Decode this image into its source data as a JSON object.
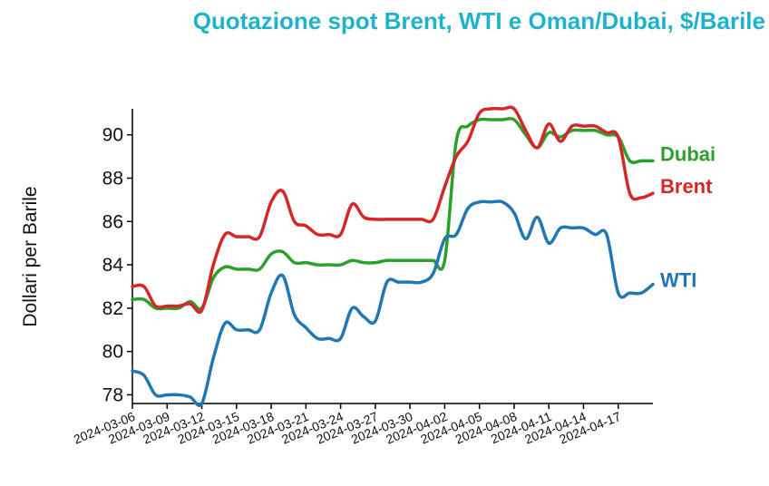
{
  "chart_data": {
    "type": "line",
    "title": "Quotazione spot Brent, WTI e Oman/Dubai, $/Barile",
    "ylabel": "Dollari per Barile",
    "xlabel": "",
    "x_ticks": [
      "2024-03-06",
      "2024-03-09",
      "2024-03-12",
      "2024-03-15",
      "2024-03-18",
      "2024-03-21",
      "2024-03-24",
      "2024-03-27",
      "2024-03-30",
      "2024-04-02",
      "2024-04-05",
      "2024-04-08",
      "2024-04-11",
      "2024-04-14",
      "2024-04-17"
    ],
    "y_ticks": [
      78,
      80,
      82,
      84,
      86,
      88,
      90
    ],
    "ylim": [
      77.6,
      91.2
    ],
    "xlim": [
      "2024-03-06",
      "2024-04-20"
    ],
    "grid": false,
    "legend": "inline labels at line ends (right)",
    "series": [
      {
        "name": "Dubai",
        "color": "#2ca02c",
        "points": [
          [
            "2024-03-06",
            82.4
          ],
          [
            "2024-03-07",
            82.4
          ],
          [
            "2024-03-08",
            82.0
          ],
          [
            "2024-03-09",
            82.0
          ],
          [
            "2024-03-10",
            82.0
          ],
          [
            "2024-03-11",
            82.3
          ],
          [
            "2024-03-12",
            82.0
          ],
          [
            "2024-03-13",
            83.4
          ],
          [
            "2024-03-14",
            83.9
          ],
          [
            "2024-03-15",
            83.8
          ],
          [
            "2024-03-16",
            83.8
          ],
          [
            "2024-03-17",
            83.8
          ],
          [
            "2024-03-18",
            84.5
          ],
          [
            "2024-03-19",
            84.6
          ],
          [
            "2024-03-20",
            84.1
          ],
          [
            "2024-03-21",
            84.1
          ],
          [
            "2024-03-22",
            84.0
          ],
          [
            "2024-03-23",
            84.0
          ],
          [
            "2024-03-24",
            84.0
          ],
          [
            "2024-03-25",
            84.2
          ],
          [
            "2024-03-26",
            84.1
          ],
          [
            "2024-03-27",
            84.1
          ],
          [
            "2024-03-28",
            84.2
          ],
          [
            "2024-03-29",
            84.2
          ],
          [
            "2024-03-30",
            84.2
          ],
          [
            "2024-03-31",
            84.2
          ],
          [
            "2024-04-01",
            84.2
          ],
          [
            "2024-04-02",
            84.2
          ],
          [
            "2024-04-03",
            89.7
          ],
          [
            "2024-04-04",
            90.4
          ],
          [
            "2024-04-05",
            90.7
          ],
          [
            "2024-04-06",
            90.7
          ],
          [
            "2024-04-07",
            90.7
          ],
          [
            "2024-04-08",
            90.7
          ],
          [
            "2024-04-09",
            90.0
          ],
          [
            "2024-04-10",
            89.4
          ],
          [
            "2024-04-11",
            90.1
          ],
          [
            "2024-04-12",
            89.9
          ],
          [
            "2024-04-13",
            90.2
          ],
          [
            "2024-04-14",
            90.2
          ],
          [
            "2024-04-15",
            90.2
          ],
          [
            "2024-04-16",
            90.0
          ],
          [
            "2024-04-17",
            89.9
          ],
          [
            "2024-04-18",
            88.8
          ],
          [
            "2024-04-19",
            88.8
          ],
          [
            "2024-04-20",
            88.8
          ]
        ]
      },
      {
        "name": "Brent",
        "color": "#d62728",
        "points": [
          [
            "2024-03-06",
            83.0
          ],
          [
            "2024-03-07",
            83.0
          ],
          [
            "2024-03-08",
            82.1
          ],
          [
            "2024-03-09",
            82.1
          ],
          [
            "2024-03-10",
            82.1
          ],
          [
            "2024-03-11",
            82.2
          ],
          [
            "2024-03-12",
            81.9
          ],
          [
            "2024-03-13",
            84.0
          ],
          [
            "2024-03-14",
            85.4
          ],
          [
            "2024-03-15",
            85.3
          ],
          [
            "2024-03-16",
            85.3
          ],
          [
            "2024-03-17",
            85.3
          ],
          [
            "2024-03-18",
            86.9
          ],
          [
            "2024-03-19",
            87.4
          ],
          [
            "2024-03-20",
            86.0
          ],
          [
            "2024-03-21",
            85.8
          ],
          [
            "2024-03-22",
            85.4
          ],
          [
            "2024-03-23",
            85.4
          ],
          [
            "2024-03-24",
            85.4
          ],
          [
            "2024-03-25",
            86.8
          ],
          [
            "2024-03-26",
            86.2
          ],
          [
            "2024-03-27",
            86.1
          ],
          [
            "2024-03-28",
            86.1
          ],
          [
            "2024-03-29",
            86.1
          ],
          [
            "2024-03-30",
            86.1
          ],
          [
            "2024-03-31",
            86.1
          ],
          [
            "2024-04-01",
            86.1
          ],
          [
            "2024-04-02",
            87.6
          ],
          [
            "2024-04-03",
            89.0
          ],
          [
            "2024-04-04",
            89.7
          ],
          [
            "2024-04-05",
            91.0
          ],
          [
            "2024-04-06",
            91.2
          ],
          [
            "2024-04-07",
            91.2
          ],
          [
            "2024-04-08",
            91.2
          ],
          [
            "2024-04-09",
            90.2
          ],
          [
            "2024-04-10",
            89.4
          ],
          [
            "2024-04-11",
            90.5
          ],
          [
            "2024-04-12",
            89.7
          ],
          [
            "2024-04-13",
            90.4
          ],
          [
            "2024-04-14",
            90.4
          ],
          [
            "2024-04-15",
            90.4
          ],
          [
            "2024-04-16",
            90.1
          ],
          [
            "2024-04-17",
            89.9
          ],
          [
            "2024-04-18",
            87.3
          ],
          [
            "2024-04-19",
            87.1
          ],
          [
            "2024-04-20",
            87.3
          ]
        ]
      },
      {
        "name": "WTI",
        "color": "#1f77b4",
        "points": [
          [
            "2024-03-06",
            79.1
          ],
          [
            "2024-03-07",
            78.9
          ],
          [
            "2024-03-08",
            78.0
          ],
          [
            "2024-03-09",
            78.0
          ],
          [
            "2024-03-10",
            78.0
          ],
          [
            "2024-03-11",
            77.9
          ],
          [
            "2024-03-12",
            77.6
          ],
          [
            "2024-03-13",
            79.7
          ],
          [
            "2024-03-14",
            81.3
          ],
          [
            "2024-03-15",
            81.0
          ],
          [
            "2024-03-16",
            81.0
          ],
          [
            "2024-03-17",
            81.0
          ],
          [
            "2024-03-18",
            82.7
          ],
          [
            "2024-03-19",
            83.5
          ],
          [
            "2024-03-20",
            81.7
          ],
          [
            "2024-03-21",
            81.1
          ],
          [
            "2024-03-22",
            80.6
          ],
          [
            "2024-03-23",
            80.6
          ],
          [
            "2024-03-24",
            80.6
          ],
          [
            "2024-03-25",
            82.0
          ],
          [
            "2024-03-26",
            81.6
          ],
          [
            "2024-03-27",
            81.4
          ],
          [
            "2024-03-28",
            83.2
          ],
          [
            "2024-03-29",
            83.2
          ],
          [
            "2024-03-30",
            83.2
          ],
          [
            "2024-03-31",
            83.2
          ],
          [
            "2024-04-01",
            83.6
          ],
          [
            "2024-04-02",
            85.2
          ],
          [
            "2024-04-03",
            85.4
          ],
          [
            "2024-04-04",
            86.6
          ],
          [
            "2024-04-05",
            86.9
          ],
          [
            "2024-04-06",
            86.9
          ],
          [
            "2024-04-07",
            86.9
          ],
          [
            "2024-04-08",
            86.4
          ],
          [
            "2024-04-09",
            85.2
          ],
          [
            "2024-04-10",
            86.2
          ],
          [
            "2024-04-11",
            85.0
          ],
          [
            "2024-04-12",
            85.7
          ],
          [
            "2024-04-13",
            85.7
          ],
          [
            "2024-04-14",
            85.7
          ],
          [
            "2024-04-15",
            85.4
          ],
          [
            "2024-04-16",
            85.4
          ],
          [
            "2024-04-17",
            82.7
          ],
          [
            "2024-04-18",
            82.7
          ],
          [
            "2024-04-19",
            82.7
          ],
          [
            "2024-04-20",
            83.1
          ]
        ]
      }
    ]
  }
}
